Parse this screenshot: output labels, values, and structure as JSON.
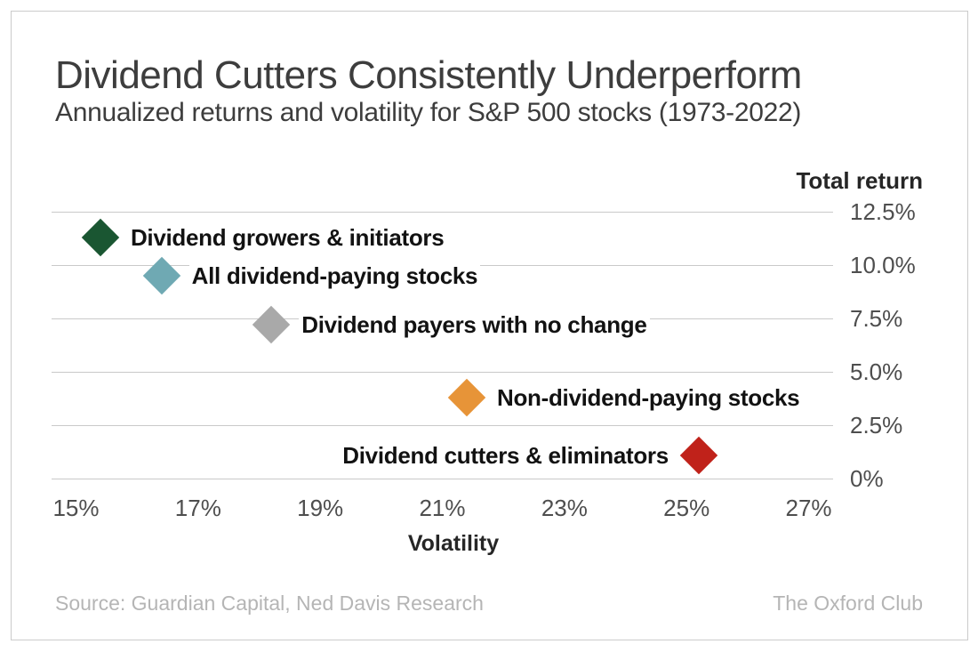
{
  "chart_data": {
    "type": "scatter",
    "title": "Dividend Cutters Consistently Underperform",
    "subtitle": "Annualized returns and volatility for S&P 500 stocks (1973-2022)",
    "xlabel": "Volatility",
    "ylabel": "Total return",
    "xlim": [
      14.6,
      27.4
    ],
    "ylim": [
      0,
      12.5
    ],
    "grid": "horizontal-only",
    "legend": "none",
    "x_ticks": [
      {
        "value": 15,
        "label": "15%"
      },
      {
        "value": 17,
        "label": "17%"
      },
      {
        "value": 19,
        "label": "19%"
      },
      {
        "value": 21,
        "label": "21%"
      },
      {
        "value": 23,
        "label": "23%"
      },
      {
        "value": 25,
        "label": "25%"
      },
      {
        "value": 27,
        "label": "27%"
      }
    ],
    "y_ticks": [
      {
        "value": 12.5,
        "label": "12.5%"
      },
      {
        "value": 10.0,
        "label": "10.0%"
      },
      {
        "value": 7.5,
        "label": "7.5%"
      },
      {
        "value": 5.0,
        "label": "5.0%"
      },
      {
        "value": 2.5,
        "label": "2.5%"
      },
      {
        "value": 0,
        "label": "0%"
      }
    ],
    "points": [
      {
        "label": "Dividend growers & initiators",
        "volatility_pct": 15.4,
        "return_pct": 11.3,
        "color": "#1a5632",
        "label_side": "right"
      },
      {
        "label": "All dividend-paying stocks",
        "volatility_pct": 16.4,
        "return_pct": 9.5,
        "color": "#6fa9b3",
        "label_side": "right"
      },
      {
        "label": "Dividend payers with no change",
        "volatility_pct": 18.2,
        "return_pct": 7.2,
        "color": "#a9a9a9",
        "label_side": "right"
      },
      {
        "label": "Non-dividend-paying stocks",
        "volatility_pct": 21.4,
        "return_pct": 3.8,
        "color": "#e79438",
        "label_side": "right"
      },
      {
        "label": "Dividend cutters & eliminators",
        "volatility_pct": 25.2,
        "return_pct": 1.1,
        "color": "#c0221a",
        "label_side": "left"
      }
    ]
  },
  "footer": {
    "source": "Source: Guardian Capital, Ned Davis Research",
    "brand": "The Oxford Club"
  },
  "colors": {
    "card_border": "#cbcbcb",
    "gridline": "#c9c9c9",
    "title_text": "#3d3d3d",
    "tick_text": "#4e4e4e",
    "label_text": "#121212",
    "footer_text": "#b5b5b5",
    "background": "#ffffff"
  }
}
